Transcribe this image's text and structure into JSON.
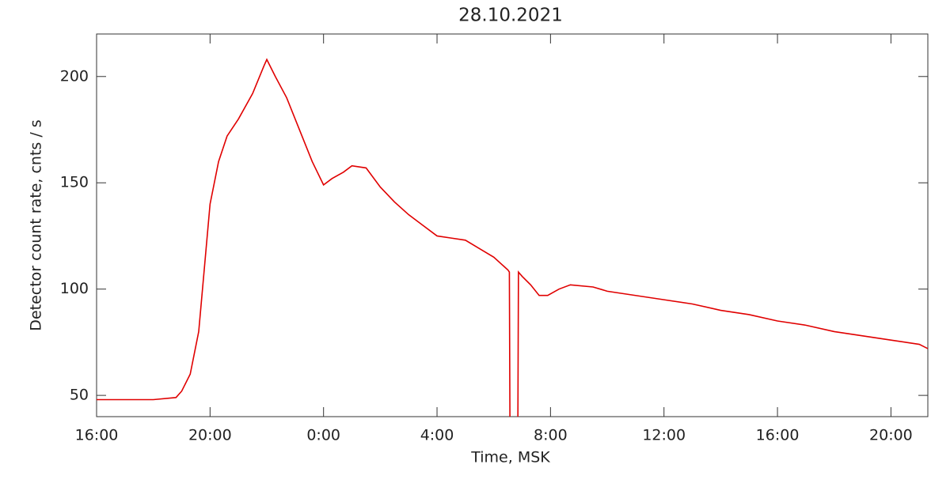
{
  "chart_data": {
    "type": "line",
    "title": "28.10.2021",
    "x_label": "Time, MSK",
    "y_label": "Detector count rate, cnts / s",
    "x": [
      16,
      17,
      18,
      18.8,
      19.0,
      19.3,
      19.6,
      19.8,
      20.0,
      20.3,
      20.6,
      21,
      21.5,
      21.9,
      22.0,
      22.3,
      22.7,
      23.0,
      23.3,
      23.6,
      24.0,
      24.3,
      24.7,
      25.0,
      25.5,
      26.0,
      26.5,
      27,
      27.5,
      28,
      28.5,
      29,
      29.5,
      30,
      30.5,
      30.55,
      30.57,
      30.7,
      30.85,
      30.87,
      31,
      31.3,
      31.6,
      31.9,
      32.3,
      32.7,
      33.5,
      34,
      35,
      36,
      37,
      38,
      39,
      40,
      41,
      42,
      43,
      44,
      45,
      45.3
    ],
    "series": [
      {
        "name": "Detector count rate",
        "color": "#e00000",
        "values": [
          48,
          48,
          48,
          49,
          52,
          60,
          80,
          110,
          140,
          160,
          172,
          180,
          192,
          205,
          208,
          200,
          190,
          180,
          170,
          160,
          149,
          152,
          155,
          158,
          157,
          148,
          141,
          135,
          130,
          125,
          124,
          123,
          119,
          115,
          109,
          108,
          38,
          null,
          38,
          108,
          106,
          102,
          97,
          97,
          100,
          102,
          101,
          99,
          97,
          95,
          93,
          90,
          88,
          85,
          83,
          80,
          78,
          76,
          74,
          72
        ]
      }
    ],
    "xlim": [
      16,
      45.3
    ],
    "ylim": [
      40,
      220
    ],
    "xticks": [
      {
        "value": 16,
        "label": "16:00"
      },
      {
        "value": 20,
        "label": "20:00"
      },
      {
        "value": 24,
        "label": "0:00"
      },
      {
        "value": 28,
        "label": "4:00"
      },
      {
        "value": 32,
        "label": "8:00"
      },
      {
        "value": 36,
        "label": "12:00"
      },
      {
        "value": 40,
        "label": "16:00"
      },
      {
        "value": 44,
        "label": "20:00"
      }
    ],
    "yticks": [
      50,
      100,
      150,
      200
    ]
  }
}
